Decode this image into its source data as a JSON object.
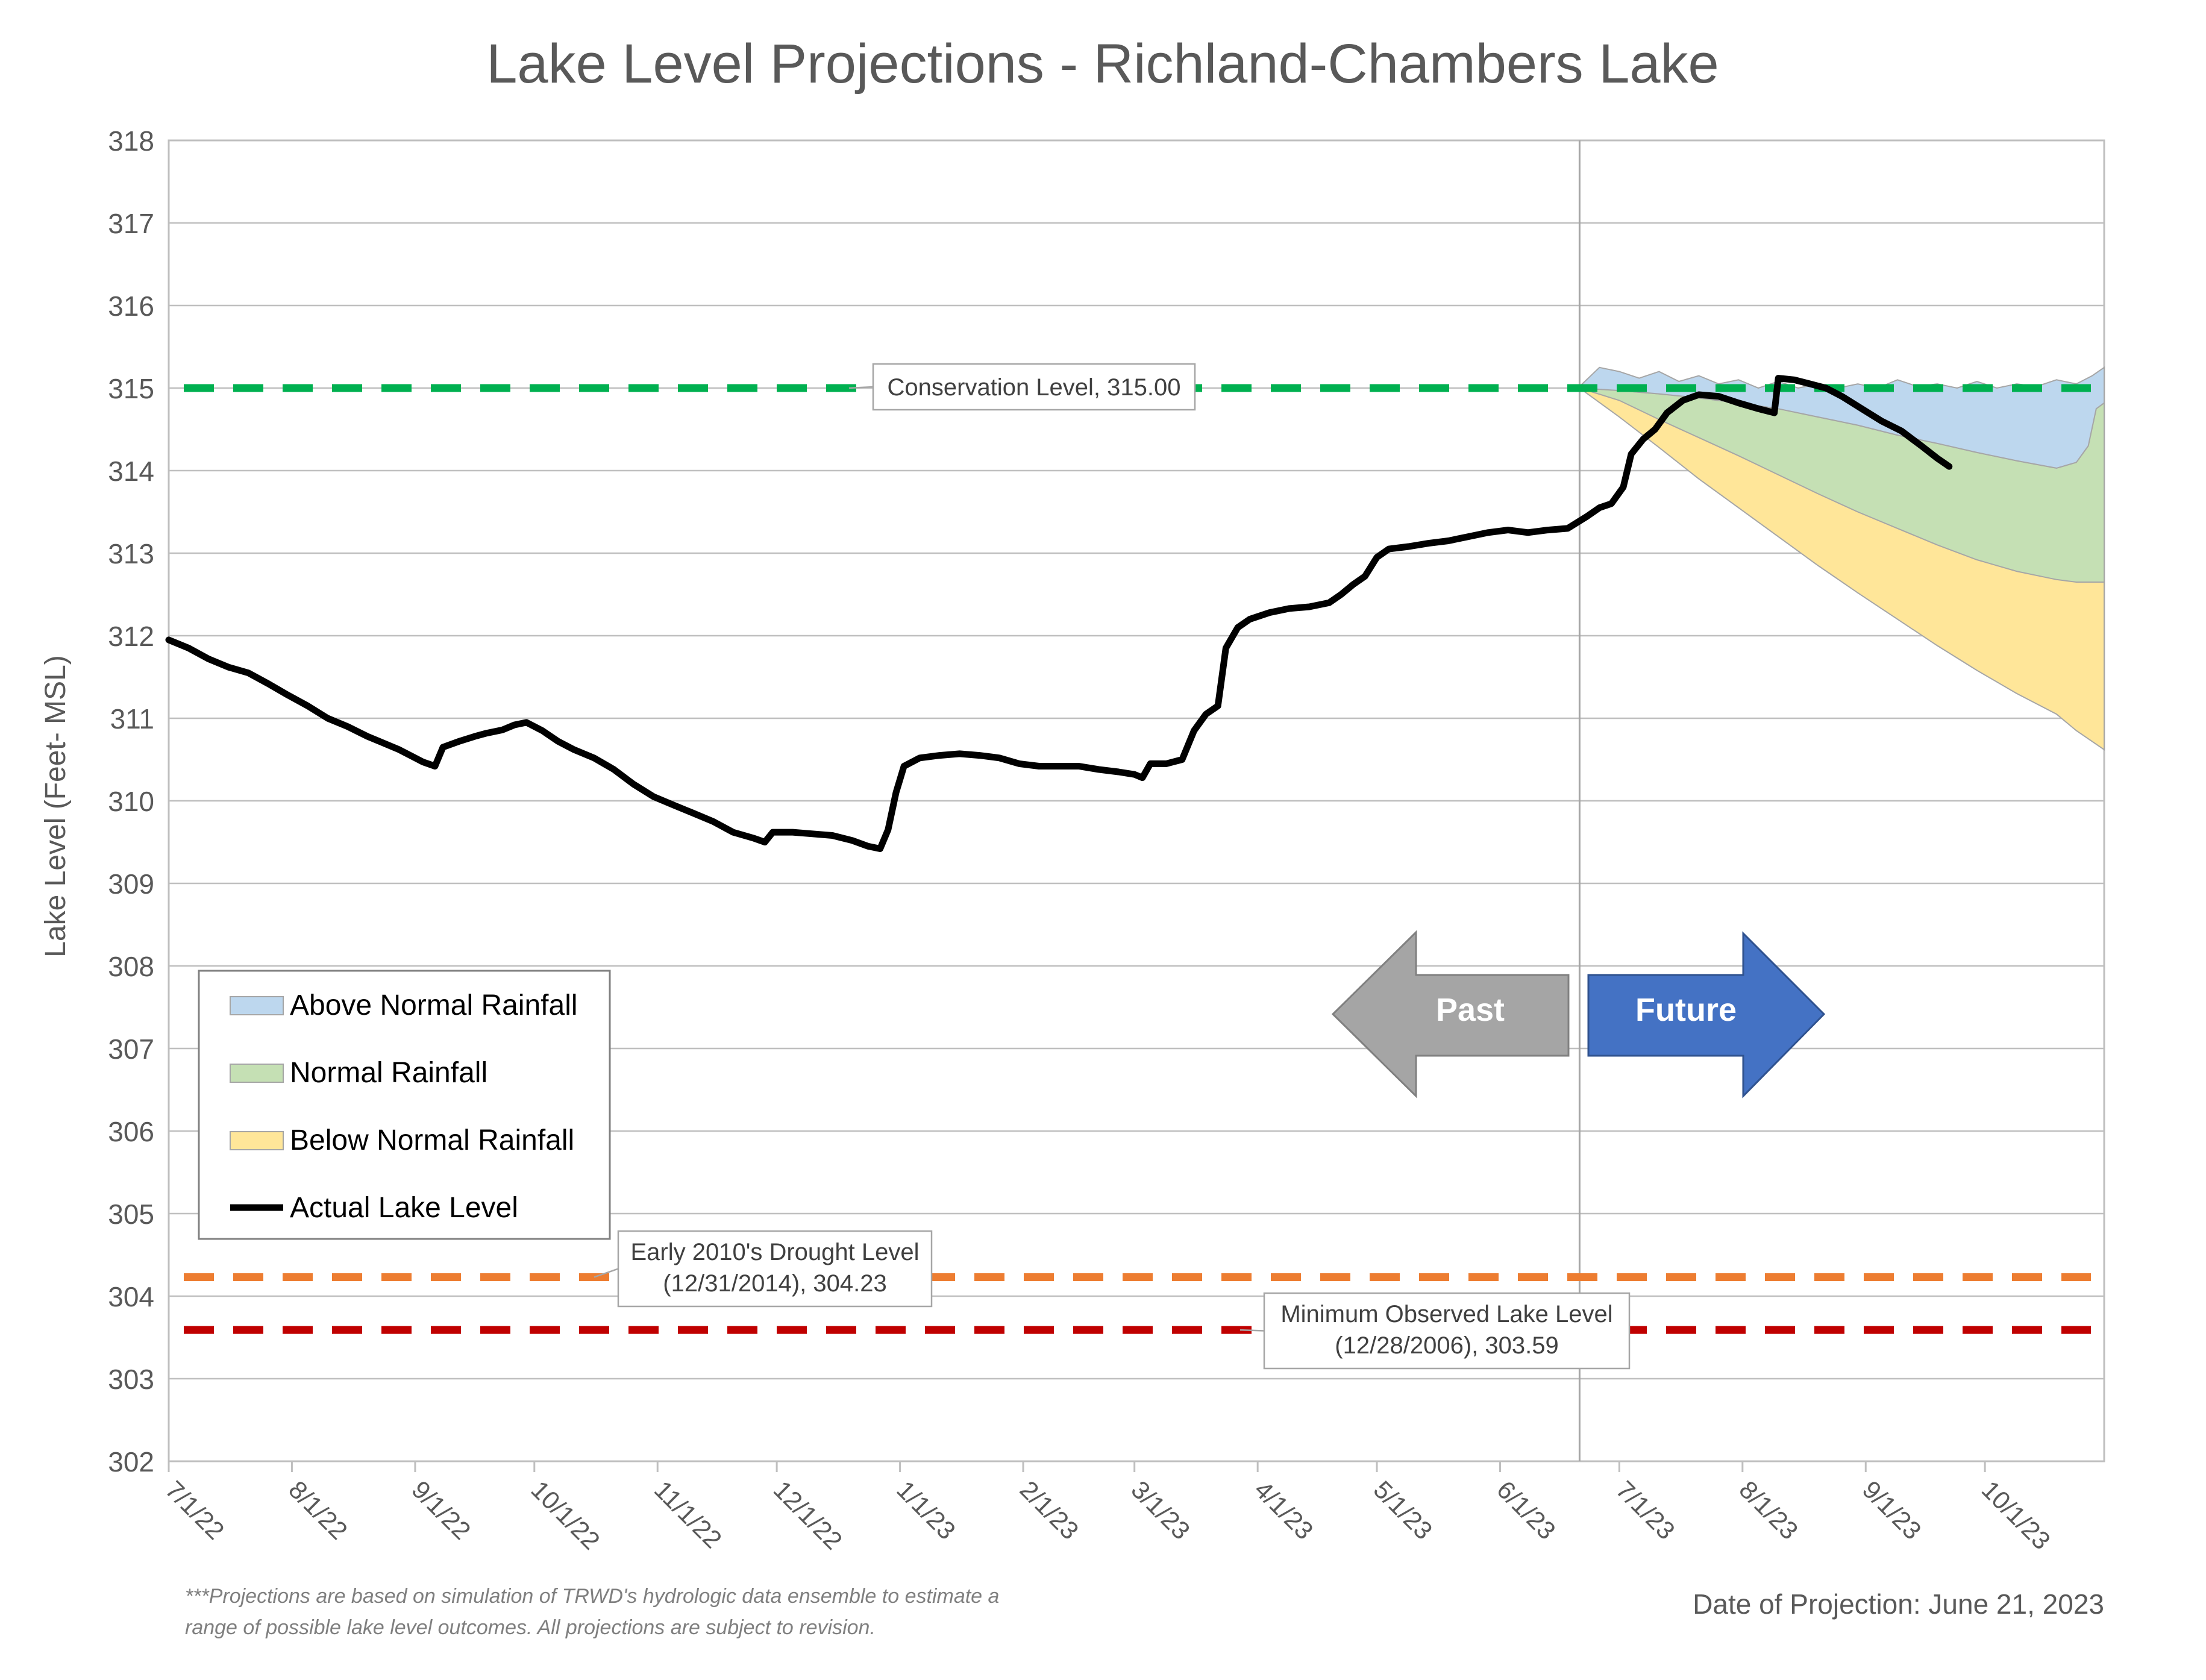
{
  "chart_data": {
    "type": "line",
    "title": "Lake Level Projections - Richland-Chambers Lake",
    "ylabel": "Lake Level (Feet- MSL)",
    "xlabel": "",
    "ylim": [
      302,
      318
    ],
    "y_ticks": [
      302,
      303,
      304,
      305,
      306,
      307,
      308,
      309,
      310,
      311,
      312,
      313,
      314,
      315,
      316,
      317,
      318
    ],
    "x_tick_labels": [
      "7/1/22",
      "8/1/22",
      "9/1/22",
      "10/1/22",
      "11/1/22",
      "12/1/22",
      "1/1/23",
      "2/1/23",
      "3/1/23",
      "4/1/23",
      "5/1/23",
      "6/1/23",
      "7/1/23",
      "8/1/23",
      "9/1/23",
      "10/1/23"
    ],
    "x_range": [
      "7/1/22",
      "10/31/23"
    ],
    "projection_date": "6/21/23",
    "grid": "horizontal",
    "legend_position": "lower-left",
    "series": [
      {
        "name": "Actual Lake Level",
        "color": "#000000",
        "points": [
          [
            "7/1/22",
            311.95
          ],
          [
            "7/6/22",
            311.85
          ],
          [
            "7/11/22",
            311.72
          ],
          [
            "7/16/22",
            311.62
          ],
          [
            "7/21/22",
            311.55
          ],
          [
            "7/26/22",
            311.42
          ],
          [
            "7/31/22",
            311.28
          ],
          [
            "8/5/22",
            311.15
          ],
          [
            "8/10/22",
            311.0
          ],
          [
            "8/15/22",
            310.9
          ],
          [
            "8/20/22",
            310.78
          ],
          [
            "8/25/22",
            310.68
          ],
          [
            "8/28/22",
            310.62
          ],
          [
            "9/1/22",
            310.52
          ],
          [
            "9/3/22",
            310.47
          ],
          [
            "9/6/22",
            310.42
          ],
          [
            "9/8/22",
            310.65
          ],
          [
            "9/12/22",
            310.72
          ],
          [
            "9/16/22",
            310.78
          ],
          [
            "9/19/22",
            310.82
          ],
          [
            "9/23/22",
            310.86
          ],
          [
            "9/26/22",
            310.92
          ],
          [
            "9/29/22",
            310.95
          ],
          [
            "10/3/22",
            310.85
          ],
          [
            "10/7/22",
            310.72
          ],
          [
            "10/11/22",
            310.62
          ],
          [
            "10/16/22",
            310.52
          ],
          [
            "10/21/22",
            310.38
          ],
          [
            "10/26/22",
            310.2
          ],
          [
            "10/31/22",
            310.05
          ],
          [
            "11/5/22",
            309.95
          ],
          [
            "11/10/22",
            309.85
          ],
          [
            "11/15/22",
            309.75
          ],
          [
            "11/20/22",
            309.62
          ],
          [
            "11/25/22",
            309.55
          ],
          [
            "11/28/22",
            309.5
          ],
          [
            "11/30/22",
            309.62
          ],
          [
            "12/5/22",
            309.62
          ],
          [
            "12/10/22",
            309.6
          ],
          [
            "12/15/22",
            309.58
          ],
          [
            "12/20/22",
            309.52
          ],
          [
            "12/24/22",
            309.45
          ],
          [
            "12/27/22",
            309.42
          ],
          [
            "12/29/22",
            309.65
          ],
          [
            "12/31/22",
            310.1
          ],
          [
            "1/2/23",
            310.42
          ],
          [
            "1/6/23",
            310.52
          ],
          [
            "1/11/23",
            310.55
          ],
          [
            "1/16/23",
            310.57
          ],
          [
            "1/21/23",
            310.55
          ],
          [
            "1/26/23",
            310.52
          ],
          [
            "1/31/23",
            310.45
          ],
          [
            "2/5/23",
            310.42
          ],
          [
            "2/10/23",
            310.42
          ],
          [
            "2/15/23",
            310.42
          ],
          [
            "2/20/23",
            310.38
          ],
          [
            "2/25/23",
            310.35
          ],
          [
            "3/1/23",
            310.32
          ],
          [
            "3/3/23",
            310.28
          ],
          [
            "3/5/23",
            310.45
          ],
          [
            "3/9/23",
            310.45
          ],
          [
            "3/13/23",
            310.5
          ],
          [
            "3/16/23",
            310.85
          ],
          [
            "3/19/23",
            311.05
          ],
          [
            "3/22/23",
            311.15
          ],
          [
            "3/24/23",
            311.85
          ],
          [
            "3/27/23",
            312.1
          ],
          [
            "3/30/23",
            312.2
          ],
          [
            "4/4/23",
            312.28
          ],
          [
            "4/9/23",
            312.33
          ],
          [
            "4/14/23",
            312.35
          ],
          [
            "4/19/23",
            312.4
          ],
          [
            "4/22/23",
            312.5
          ],
          [
            "4/25/23",
            312.62
          ],
          [
            "4/28/23",
            312.72
          ],
          [
            "5/1/23",
            312.95
          ],
          [
            "5/4/23",
            313.05
          ],
          [
            "5/9/23",
            313.08
          ],
          [
            "5/14/23",
            313.12
          ],
          [
            "5/19/23",
            313.15
          ],
          [
            "5/24/23",
            313.2
          ],
          [
            "5/29/23",
            313.25
          ],
          [
            "6/3/23",
            313.28
          ],
          [
            "6/8/23",
            313.25
          ],
          [
            "6/13/23",
            313.28
          ],
          [
            "6/18/23",
            313.3
          ],
          [
            "6/23/23",
            313.45
          ],
          [
            "6/26/23",
            313.55
          ],
          [
            "6/29/23",
            313.6
          ],
          [
            "7/2/23",
            313.8
          ],
          [
            "7/4/23",
            314.2
          ],
          [
            "7/7/23",
            314.38
          ],
          [
            "7/10/23",
            314.5
          ],
          [
            "7/13/23",
            314.7
          ],
          [
            "7/17/23",
            314.85
          ],
          [
            "7/21/23",
            314.92
          ],
          [
            "7/26/23",
            314.9
          ],
          [
            "7/31/23",
            314.82
          ],
          [
            "8/5/23",
            314.75
          ],
          [
            "8/9/23",
            314.7
          ],
          [
            "8/10/23",
            315.12
          ],
          [
            "8/14/23",
            315.1
          ],
          [
            "8/18/23",
            315.05
          ],
          [
            "8/22/23",
            315.0
          ],
          [
            "8/26/23",
            314.9
          ],
          [
            "8/31/23",
            314.75
          ],
          [
            "9/5/23",
            314.6
          ],
          [
            "9/10/23",
            314.48
          ],
          [
            "9/15/23",
            314.3
          ],
          [
            "9/19/23",
            314.15
          ],
          [
            "9/22/23",
            314.05
          ]
        ]
      },
      {
        "name": "Above Normal Rainfall",
        "color": "#bdd7ee",
        "upper": [
          [
            "6/21/23",
            315.02
          ],
          [
            "6/26/23",
            315.25
          ],
          [
            "7/1/23",
            315.2
          ],
          [
            "7/6/23",
            315.12
          ],
          [
            "7/11/23",
            315.2
          ],
          [
            "7/16/23",
            315.08
          ],
          [
            "7/21/23",
            315.15
          ],
          [
            "7/26/23",
            315.05
          ],
          [
            "7/31/23",
            315.1
          ],
          [
            "8/5/23",
            315.0
          ],
          [
            "8/10/23",
            315.08
          ],
          [
            "8/15/23",
            315.0
          ],
          [
            "8/20/23",
            315.05
          ],
          [
            "8/25/23",
            315.0
          ],
          [
            "8/30/23",
            315.05
          ],
          [
            "9/4/23",
            315.0
          ],
          [
            "9/9/23",
            315.1
          ],
          [
            "9/14/23",
            315.02
          ],
          [
            "9/19/23",
            315.05
          ],
          [
            "9/24/23",
            315.0
          ],
          [
            "9/29/23",
            315.08
          ],
          [
            "10/4/23",
            315.0
          ],
          [
            "10/9/23",
            315.05
          ],
          [
            "10/14/23",
            315.02
          ],
          [
            "10/19/23",
            315.1
          ],
          [
            "10/24/23",
            315.05
          ],
          [
            "10/28/23",
            315.15
          ],
          [
            "10/31/23",
            315.25
          ]
        ],
        "lower": [
          [
            "6/21/23",
            315.0
          ],
          [
            "7/1/23",
            314.97
          ],
          [
            "7/11/23",
            314.93
          ],
          [
            "7/21/23",
            314.88
          ],
          [
            "7/31/23",
            314.82
          ],
          [
            "8/10/23",
            314.75
          ],
          [
            "8/20/23",
            314.65
          ],
          [
            "8/30/23",
            314.55
          ],
          [
            "9/9/23",
            314.43
          ],
          [
            "9/19/23",
            314.33
          ],
          [
            "9/29/23",
            314.22
          ],
          [
            "10/9/23",
            314.12
          ],
          [
            "10/19/23",
            314.03
          ],
          [
            "10/24/23",
            314.1
          ],
          [
            "10/27/23",
            314.3
          ],
          [
            "10/29/23",
            314.75
          ],
          [
            "10/31/23",
            314.82
          ]
        ]
      },
      {
        "name": "Normal Rainfall",
        "color": "#c5e0b4",
        "lower": [
          [
            "6/21/23",
            315.0
          ],
          [
            "7/1/23",
            314.85
          ],
          [
            "7/11/23",
            314.62
          ],
          [
            "7/21/23",
            314.4
          ],
          [
            "7/31/23",
            314.18
          ],
          [
            "8/10/23",
            313.95
          ],
          [
            "8/20/23",
            313.72
          ],
          [
            "8/30/23",
            313.5
          ],
          [
            "9/9/23",
            313.3
          ],
          [
            "9/19/23",
            313.1
          ],
          [
            "9/29/23",
            312.92
          ],
          [
            "10/9/23",
            312.78
          ],
          [
            "10/19/23",
            312.68
          ],
          [
            "10/24/23",
            312.65
          ],
          [
            "10/31/23",
            312.65
          ]
        ]
      },
      {
        "name": "Below Normal Rainfall",
        "color": "#ffe699",
        "lower": [
          [
            "6/21/23",
            315.0
          ],
          [
            "7/1/23",
            314.65
          ],
          [
            "7/11/23",
            314.28
          ],
          [
            "7/21/23",
            313.9
          ],
          [
            "7/31/23",
            313.55
          ],
          [
            "8/10/23",
            313.2
          ],
          [
            "8/20/23",
            312.85
          ],
          [
            "8/30/23",
            312.52
          ],
          [
            "9/9/23",
            312.2
          ],
          [
            "9/19/23",
            311.88
          ],
          [
            "9/29/23",
            311.58
          ],
          [
            "10/9/23",
            311.3
          ],
          [
            "10/19/23",
            311.05
          ],
          [
            "10/24/23",
            310.85
          ],
          [
            "10/31/23",
            310.62
          ]
        ]
      }
    ],
    "reference_lines": [
      {
        "name": "conservation",
        "value": 315.0,
        "color": "#00b050",
        "label_lines": [
          "Conservation Level, 315.00"
        ]
      },
      {
        "name": "drought",
        "value": 304.23,
        "color": "#ed7d31",
        "label_lines": [
          "Early 2010's Drought Level",
          "(12/31/2014), 304.23"
        ]
      },
      {
        "name": "minimum",
        "value": 303.59,
        "color": "#c00000",
        "label_lines": [
          "Minimum Observed Lake Level",
          "(12/28/2006), 303.59"
        ]
      }
    ],
    "legend": [
      {
        "label": "Above Normal Rainfall",
        "kind": "area",
        "color": "#bdd7ee"
      },
      {
        "label": "Normal Rainfall",
        "kind": "area",
        "color": "#c5e0b4"
      },
      {
        "label": "Below Normal Rainfall",
        "kind": "area",
        "color": "#ffe699"
      },
      {
        "label": "Actual Lake Level",
        "kind": "line",
        "color": "#000000"
      }
    ],
    "arrows": {
      "past": {
        "label": "Past",
        "color": "#a5a5a5"
      },
      "future": {
        "label": "Future",
        "color": "#4472c4"
      }
    },
    "footnote_lines": [
      "***Projections are based on simulation of TRWD's hydrologic data ensemble to estimate a",
      "range of possible lake level outcomes.  All projections are subject to revision."
    ],
    "projection_note": "Date of Projection: June 21, 2023"
  }
}
